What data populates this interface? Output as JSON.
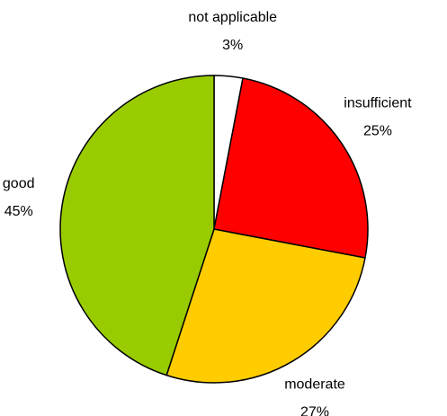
{
  "chart_data": {
    "type": "pie",
    "categories": [
      "not applicable",
      "insufficient",
      "moderate",
      "good"
    ],
    "values": [
      3,
      25,
      27,
      45
    ],
    "value_labels": [
      "3%",
      "25%",
      "27%",
      "45%"
    ],
    "colors": [
      "#ffffff",
      "#ff0000",
      "#ffcc00",
      "#99cc00"
    ]
  }
}
